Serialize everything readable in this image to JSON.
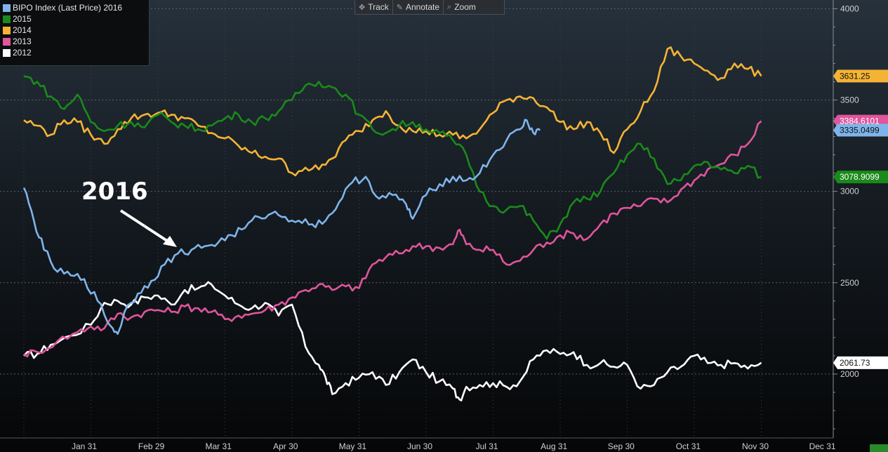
{
  "toolbar": {
    "items": [
      {
        "label": "Track",
        "icon": "crosshair-icon"
      },
      {
        "label": "Annotate",
        "icon": "pencil-icon"
      },
      {
        "label": "Zoom",
        "icon": "magnifier-icon"
      }
    ]
  },
  "legend": {
    "entries": [
      {
        "label": "BIPO Index (Last Price) 2016",
        "color": "#7fb4ea"
      },
      {
        "label": "2015",
        "color": "#1a8a1a"
      },
      {
        "label": "2014",
        "color": "#f5b335"
      },
      {
        "label": "2013",
        "color": "#e0559c"
      },
      {
        "label": "2012",
        "color": "#ffffff"
      }
    ]
  },
  "annotation": {
    "text": "2016"
  },
  "chart_data": {
    "type": "line",
    "x_labels": [
      "Jan 31",
      "Feb 29",
      "Mar 31",
      "Apr 30",
      "May 31",
      "Jun 30",
      "Jul 31",
      "Aug 31",
      "Sep 30",
      "Oct 31",
      "Nov 30",
      "Dec 31"
    ],
    "y_ticks": [
      2000,
      2500,
      3000,
      3500,
      4000
    ],
    "ylim": [
      1650,
      4040
    ],
    "grid": true,
    "legend_position": "top-left",
    "series": [
      {
        "name": "2012",
        "color": "#ffffff",
        "last_value": 2061.73,
        "last_label": "2061.73",
        "values": [
          [
            0.0,
            2100
          ],
          [
            0.2,
            2110
          ],
          [
            0.4,
            2160
          ],
          [
            0.7,
            2210
          ],
          [
            1.0,
            2270
          ],
          [
            1.2,
            2390
          ],
          [
            1.4,
            2400
          ],
          [
            1.6,
            2380
          ],
          [
            1.8,
            2420
          ],
          [
            2.0,
            2430
          ],
          [
            2.2,
            2380
          ],
          [
            2.4,
            2460
          ],
          [
            2.6,
            2470
          ],
          [
            2.8,
            2490
          ],
          [
            3.0,
            2430
          ],
          [
            3.2,
            2380
          ],
          [
            3.4,
            2360
          ],
          [
            3.6,
            2390
          ],
          [
            3.8,
            2320
          ],
          [
            4.0,
            2380
          ],
          [
            4.2,
            2150
          ],
          [
            4.4,
            2050
          ],
          [
            4.5,
            1980
          ],
          [
            4.6,
            1890
          ],
          [
            4.8,
            1950
          ],
          [
            5.0,
            1980
          ],
          [
            5.2,
            2010
          ],
          [
            5.4,
            1940
          ],
          [
            5.6,
            2010
          ],
          [
            5.8,
            2080
          ],
          [
            6.0,
            2010
          ],
          [
            6.2,
            1960
          ],
          [
            6.4,
            1920
          ],
          [
            6.5,
            1860
          ],
          [
            6.6,
            1930
          ],
          [
            6.8,
            1940
          ],
          [
            7.0,
            1950
          ],
          [
            7.2,
            1930
          ],
          [
            7.4,
            1960
          ],
          [
            7.6,
            2080
          ],
          [
            7.8,
            2130
          ],
          [
            8.0,
            2110
          ],
          [
            8.2,
            2120
          ],
          [
            8.4,
            2050
          ],
          [
            8.6,
            2060
          ],
          [
            8.8,
            2040
          ],
          [
            9.0,
            2050
          ],
          [
            9.2,
            1920
          ],
          [
            9.4,
            1940
          ],
          [
            9.6,
            2010
          ],
          [
            9.8,
            2040
          ],
          [
            10.0,
            2100
          ],
          [
            10.2,
            2060
          ],
          [
            10.4,
            2050
          ],
          [
            10.6,
            2060
          ],
          [
            10.8,
            2030
          ],
          [
            11.0,
            2062
          ]
        ]
      },
      {
        "name": "2013",
        "color": "#e0559c",
        "last_value": 3384.6101,
        "last_label": "3384.6101",
        "values": [
          [
            0.0,
            2110
          ],
          [
            0.2,
            2120
          ],
          [
            0.5,
            2180
          ],
          [
            0.8,
            2230
          ],
          [
            1.0,
            2260
          ],
          [
            1.2,
            2250
          ],
          [
            1.4,
            2330
          ],
          [
            1.6,
            2310
          ],
          [
            1.8,
            2340
          ],
          [
            2.0,
            2350
          ],
          [
            2.2,
            2340
          ],
          [
            2.4,
            2370
          ],
          [
            2.6,
            2360
          ],
          [
            2.8,
            2340
          ],
          [
            3.0,
            2300
          ],
          [
            3.2,
            2320
          ],
          [
            3.4,
            2330
          ],
          [
            3.6,
            2350
          ],
          [
            3.8,
            2380
          ],
          [
            4.0,
            2420
          ],
          [
            4.2,
            2460
          ],
          [
            4.4,
            2490
          ],
          [
            4.6,
            2460
          ],
          [
            4.8,
            2480
          ],
          [
            5.0,
            2470
          ],
          [
            5.2,
            2600
          ],
          [
            5.4,
            2640
          ],
          [
            5.6,
            2660
          ],
          [
            5.8,
            2700
          ],
          [
            6.0,
            2700
          ],
          [
            6.2,
            2690
          ],
          [
            6.4,
            2710
          ],
          [
            6.5,
            2790
          ],
          [
            6.6,
            2710
          ],
          [
            6.8,
            2680
          ],
          [
            7.0,
            2680
          ],
          [
            7.2,
            2600
          ],
          [
            7.4,
            2620
          ],
          [
            7.6,
            2680
          ],
          [
            7.8,
            2720
          ],
          [
            8.0,
            2760
          ],
          [
            8.2,
            2770
          ],
          [
            8.4,
            2740
          ],
          [
            8.6,
            2820
          ],
          [
            8.8,
            2880
          ],
          [
            9.0,
            2910
          ],
          [
            9.2,
            2920
          ],
          [
            9.4,
            2960
          ],
          [
            9.6,
            2940
          ],
          [
            9.8,
            3010
          ],
          [
            10.0,
            3060
          ],
          [
            10.2,
            3120
          ],
          [
            10.4,
            3150
          ],
          [
            10.6,
            3200
          ],
          [
            10.8,
            3260
          ],
          [
            11.0,
            3385
          ]
        ]
      },
      {
        "name": "2014",
        "color": "#f5b335",
        "last_value": 3631.25,
        "last_label": "3631.25",
        "values": [
          [
            0.0,
            3390
          ],
          [
            0.2,
            3360
          ],
          [
            0.4,
            3310
          ],
          [
            0.6,
            3390
          ],
          [
            0.8,
            3380
          ],
          [
            1.0,
            3310
          ],
          [
            1.2,
            3260
          ],
          [
            1.4,
            3340
          ],
          [
            1.6,
            3400
          ],
          [
            1.8,
            3420
          ],
          [
            2.0,
            3430
          ],
          [
            2.2,
            3420
          ],
          [
            2.4,
            3400
          ],
          [
            2.6,
            3360
          ],
          [
            2.8,
            3320
          ],
          [
            3.0,
            3290
          ],
          [
            3.2,
            3250
          ],
          [
            3.4,
            3210
          ],
          [
            3.6,
            3190
          ],
          [
            3.8,
            3180
          ],
          [
            4.0,
            3100
          ],
          [
            4.2,
            3130
          ],
          [
            4.4,
            3120
          ],
          [
            4.6,
            3180
          ],
          [
            4.8,
            3280
          ],
          [
            5.0,
            3330
          ],
          [
            5.2,
            3390
          ],
          [
            5.4,
            3440
          ],
          [
            5.6,
            3360
          ],
          [
            5.8,
            3330
          ],
          [
            6.0,
            3330
          ],
          [
            6.2,
            3310
          ],
          [
            6.4,
            3310
          ],
          [
            6.6,
            3290
          ],
          [
            6.8,
            3340
          ],
          [
            7.0,
            3430
          ],
          [
            7.2,
            3500
          ],
          [
            7.4,
            3520
          ],
          [
            7.6,
            3510
          ],
          [
            7.8,
            3460
          ],
          [
            8.0,
            3380
          ],
          [
            8.2,
            3340
          ],
          [
            8.4,
            3380
          ],
          [
            8.6,
            3320
          ],
          [
            8.8,
            3210
          ],
          [
            9.0,
            3340
          ],
          [
            9.2,
            3440
          ],
          [
            9.4,
            3550
          ],
          [
            9.6,
            3780
          ],
          [
            9.8,
            3740
          ],
          [
            10.0,
            3700
          ],
          [
            10.2,
            3660
          ],
          [
            10.4,
            3620
          ],
          [
            10.6,
            3700
          ],
          [
            10.8,
            3670
          ],
          [
            11.0,
            3631
          ]
        ]
      },
      {
        "name": "2015",
        "color": "#1a8a1a",
        "last_value": 3078.9099,
        "last_label": "3078.9099",
        "values": [
          [
            0.0,
            3630
          ],
          [
            0.2,
            3600
          ],
          [
            0.4,
            3520
          ],
          [
            0.6,
            3450
          ],
          [
            0.8,
            3530
          ],
          [
            1.0,
            3380
          ],
          [
            1.2,
            3330
          ],
          [
            1.4,
            3360
          ],
          [
            1.6,
            3380
          ],
          [
            1.8,
            3350
          ],
          [
            2.0,
            3420
          ],
          [
            2.2,
            3380
          ],
          [
            2.4,
            3360
          ],
          [
            2.6,
            3340
          ],
          [
            2.8,
            3360
          ],
          [
            3.0,
            3400
          ],
          [
            3.2,
            3420
          ],
          [
            3.4,
            3380
          ],
          [
            3.6,
            3400
          ],
          [
            3.8,
            3440
          ],
          [
            4.0,
            3500
          ],
          [
            4.2,
            3580
          ],
          [
            4.4,
            3600
          ],
          [
            4.6,
            3570
          ],
          [
            4.8,
            3530
          ],
          [
            5.0,
            3420
          ],
          [
            5.2,
            3340
          ],
          [
            5.4,
            3320
          ],
          [
            5.6,
            3360
          ],
          [
            5.8,
            3380
          ],
          [
            6.0,
            3340
          ],
          [
            6.2,
            3320
          ],
          [
            6.4,
            3280
          ],
          [
            6.6,
            3200
          ],
          [
            6.8,
            3000
          ],
          [
            7.0,
            2920
          ],
          [
            7.2,
            2900
          ],
          [
            7.4,
            2920
          ],
          [
            7.6,
            2840
          ],
          [
            7.8,
            2740
          ],
          [
            8.0,
            2820
          ],
          [
            8.2,
            2940
          ],
          [
            8.4,
            2960
          ],
          [
            8.6,
            3000
          ],
          [
            8.8,
            3100
          ],
          [
            9.0,
            3200
          ],
          [
            9.2,
            3260
          ],
          [
            9.4,
            3180
          ],
          [
            9.6,
            3040
          ],
          [
            9.8,
            3060
          ],
          [
            10.0,
            3140
          ],
          [
            10.2,
            3160
          ],
          [
            10.4,
            3120
          ],
          [
            10.6,
            3100
          ],
          [
            10.8,
            3140
          ],
          [
            11.0,
            3079
          ]
        ]
      },
      {
        "name": "BIPO Index (Last Price) 2016",
        "color": "#7fb4ea",
        "last_value": 3335.0499,
        "last_label": "3335.0499",
        "values": [
          [
            0.0,
            3020
          ],
          [
            0.15,
            2840
          ],
          [
            0.3,
            2680
          ],
          [
            0.5,
            2560
          ],
          [
            0.7,
            2540
          ],
          [
            0.9,
            2520
          ],
          [
            1.1,
            2400
          ],
          [
            1.3,
            2260
          ],
          [
            1.4,
            2220
          ],
          [
            1.5,
            2340
          ],
          [
            1.7,
            2440
          ],
          [
            1.9,
            2510
          ],
          [
            2.1,
            2600
          ],
          [
            2.3,
            2660
          ],
          [
            2.5,
            2680
          ],
          [
            2.7,
            2700
          ],
          [
            2.9,
            2720
          ],
          [
            3.1,
            2760
          ],
          [
            3.3,
            2800
          ],
          [
            3.5,
            2860
          ],
          [
            3.7,
            2880
          ],
          [
            3.9,
            2860
          ],
          [
            4.1,
            2840
          ],
          [
            4.3,
            2820
          ],
          [
            4.5,
            2840
          ],
          [
            4.7,
            2940
          ],
          [
            4.9,
            3050
          ],
          [
            5.1,
            3080
          ],
          [
            5.3,
            2960
          ],
          [
            5.5,
            2980
          ],
          [
            5.7,
            2930
          ],
          [
            5.8,
            2850
          ],
          [
            6.0,
            2980
          ],
          [
            6.2,
            3040
          ],
          [
            6.4,
            3080
          ],
          [
            6.6,
            3060
          ],
          [
            6.8,
            3100
          ],
          [
            7.0,
            3200
          ],
          [
            7.2,
            3280
          ],
          [
            7.4,
            3340
          ],
          [
            7.5,
            3390
          ],
          [
            7.6,
            3320
          ],
          [
            7.7,
            3335
          ]
        ]
      }
    ]
  }
}
